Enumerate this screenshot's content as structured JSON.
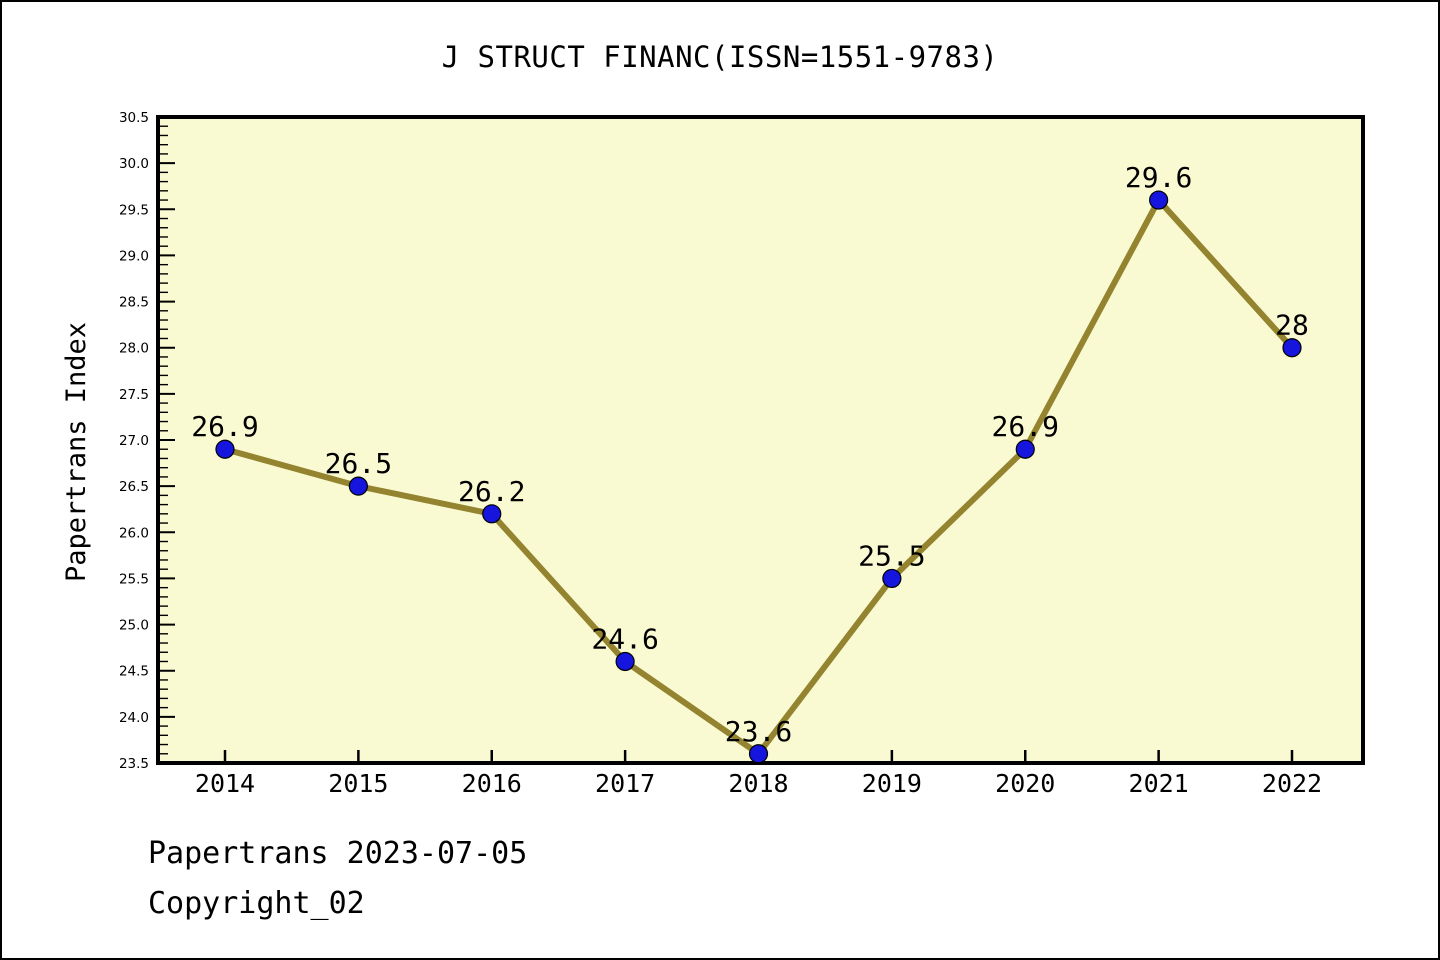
{
  "chart_data": {
    "type": "line",
    "title": "J STRUCT FINANC(ISSN=1551-9783)",
    "ylabel": "Papertrans Index",
    "xlabel": "",
    "x": [
      2014,
      2015,
      2016,
      2017,
      2018,
      2019,
      2020,
      2021,
      2022
    ],
    "series": [
      {
        "name": "Papertrans Index",
        "values": [
          26.9,
          26.5,
          26.2,
          24.6,
          23.6,
          25.5,
          26.9,
          29.6,
          28
        ]
      }
    ],
    "point_labels": [
      "26.9",
      "26.5",
      "26.2",
      "24.6",
      "23.6",
      "25.5",
      "26.9",
      "29.6",
      "28"
    ],
    "ylim": [
      23.5,
      30.5
    ],
    "y_major_step": 0.5,
    "y_minor_step": 0.1,
    "grid": false,
    "legend": false,
    "colors": {
      "plot_bg": "#FAFAD2",
      "line": "#948430",
      "marker": "#1515DD",
      "marker_edge": "#000000",
      "frame": "#000000",
      "text": "#000000"
    }
  },
  "footer": {
    "line1": "Papertrans 2023-07-05",
    "line2": "Copyright_02"
  }
}
